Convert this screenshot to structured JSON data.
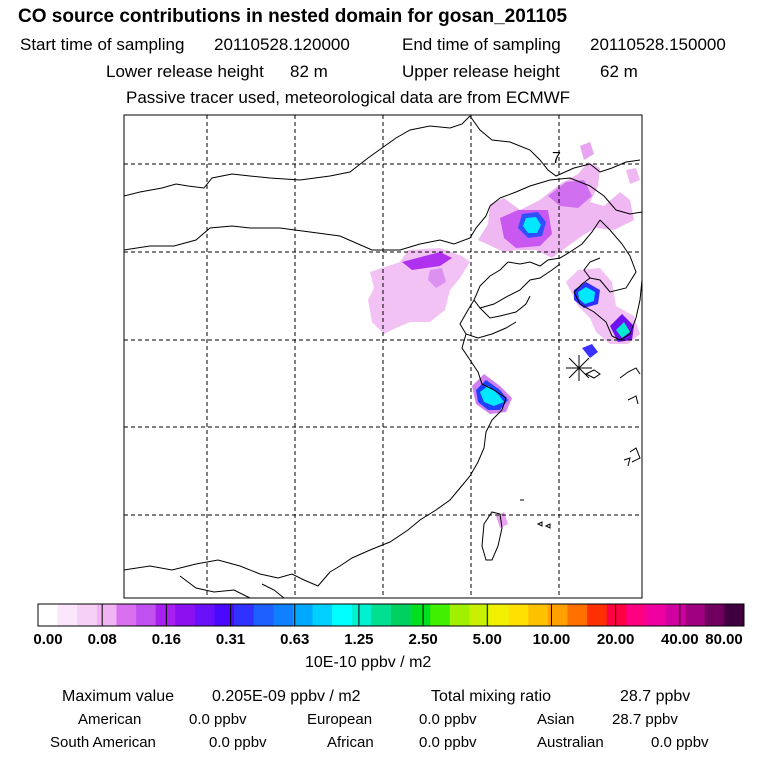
{
  "title": "CO  source contributions in nested domain for gosan_201105",
  "sampling": {
    "start_label": "Start time of sampling",
    "start_value": "20110528.120000",
    "end_label": "End time of sampling",
    "end_value": "20110528.150000"
  },
  "release": {
    "lower_label": "Lower release height",
    "lower_value": "82 m",
    "upper_label": "Upper release height",
    "upper_value": "62 m"
  },
  "tracer_note": "Passive tracer used, meteorological data are from ECMWF",
  "map": {
    "marker_label": "7",
    "station_marker": "asterisk",
    "colors": {
      "low": "#e8a8f0",
      "mid": "#a020f0",
      "blue": "#3050ff",
      "cyan": "#00e8ff",
      "teal": "#00d8b0",
      "coast": "#000000",
      "grid": "#000000"
    }
  },
  "colorbar": {
    "colors": [
      "#ffffff",
      "#fbe6fb",
      "#f6d0f6",
      "#f0b4f2",
      "#d870f0",
      "#c050f0",
      "#a820f0",
      "#8a10f0",
      "#6a10f8",
      "#4a08ff",
      "#3030ff",
      "#1e60ff",
      "#1080ff",
      "#00a8ff",
      "#00d0ff",
      "#00ffff",
      "#00f0d0",
      "#00e090",
      "#00d060",
      "#00e020",
      "#40f000",
      "#a0f000",
      "#c8f000",
      "#f0f000",
      "#ffe000",
      "#ffc000",
      "#ffa000",
      "#ff7000",
      "#ff3000",
      "#ff0040",
      "#ff0080",
      "#f000a0",
      "#d000a0",
      "#a00080",
      "#700060",
      "#400040"
    ],
    "tick_labels": [
      "0.00",
      "0.08",
      "0.16",
      "0.31",
      "0.63",
      "1.25",
      "2.50",
      "5.00",
      "10.00",
      "20.00",
      "40.00",
      "80.00"
    ],
    "unit": "10E-10 ppbv / m2"
  },
  "summary": {
    "max_label": "Maximum value",
    "max_value": "0.205E-09 ppbv / m2",
    "total_label": "Total mixing ratio",
    "total_value": "28.7 ppbv",
    "regions": [
      {
        "name": "American",
        "value": "0.0 ppbv"
      },
      {
        "name": "European",
        "value": "0.0 ppbv"
      },
      {
        "name": "Asian",
        "value": "28.7 ppbv"
      },
      {
        "name": "South American",
        "value": "0.0 ppbv"
      },
      {
        "name": "African",
        "value": "0.0 ppbv"
      },
      {
        "name": "Australian",
        "value": "0.0 ppbv"
      }
    ]
  }
}
